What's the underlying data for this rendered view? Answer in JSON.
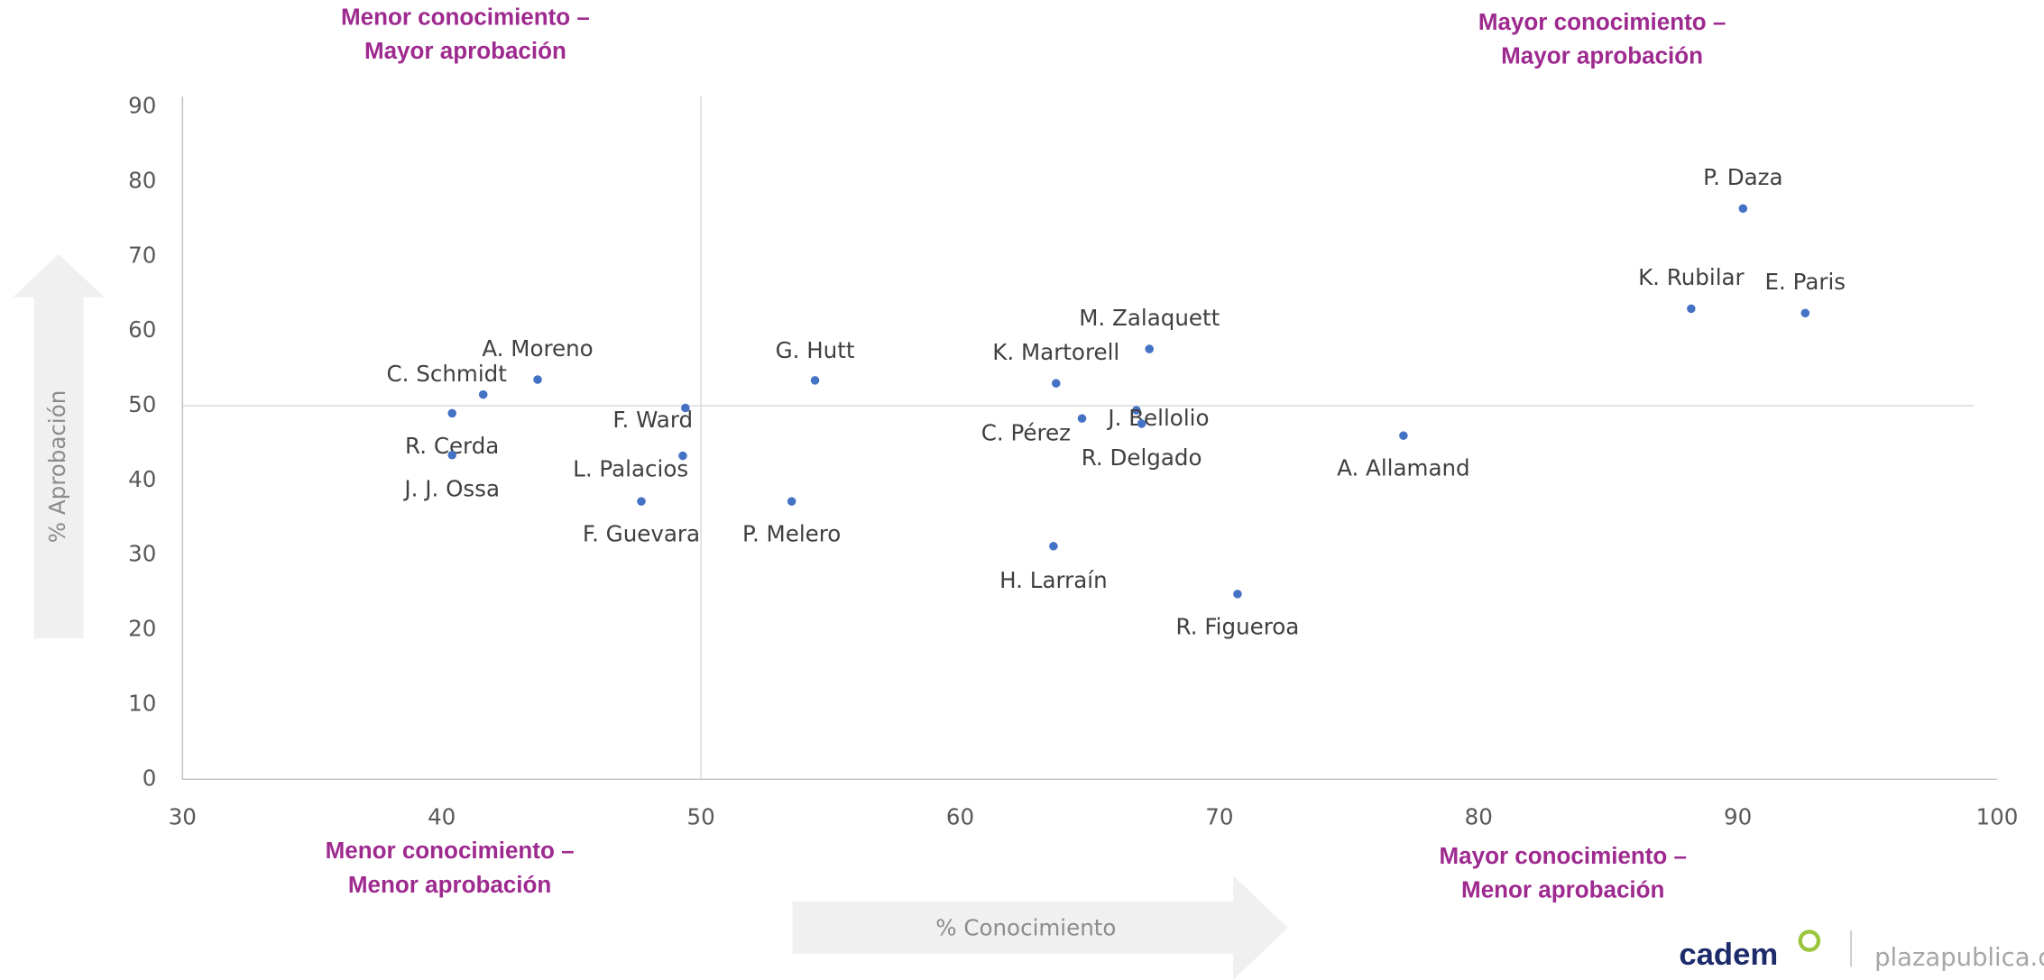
{
  "chart_data": {
    "type": "scatter",
    "x_label": "% Conocimiento",
    "y_label": "% Aprobación",
    "annotations": [
      "Menor conocimiento –\nMayor aprobación",
      "Mayor conocimiento –\nMayor aprobación",
      "Menor conocimiento –\nMenor aprobación",
      "Mayor conocimiento –\nMenor aprobación"
    ],
    "color": "#4472c4",
    "labels": [
      "P. Daza",
      "K. Rubilar",
      "E. Paris",
      "M. Zalaquett",
      "K. Martorell",
      "G. Hutt",
      "A. Moreno",
      "C. Schmidt",
      "R. Cerda",
      "J. J. Ossa",
      "F. Ward",
      "L. Palacios",
      "F. Guevara",
      "P. Melero",
      "C. Pérez",
      "J. Bellolio",
      "R. Delgado",
      "A. Allamand",
      "H. Larraín",
      "R. Figueroa"
    ],
    "x": [
      90.2,
      88.2,
      92.6,
      67.3,
      63.7,
      54.4,
      43.7,
      41.6,
      40.4,
      40.4,
      49.4,
      49.3,
      47.7,
      53.5,
      64.7,
      66.8,
      67.0,
      77.1,
      63.6,
      70.7
    ],
    "y": [
      76.4,
      63.0,
      62.4,
      57.6,
      53.0,
      53.4,
      53.5,
      51.5,
      49.0,
      43.4,
      49.7,
      43.3,
      37.2,
      37.2,
      48.3,
      49.4,
      47.6,
      46.0,
      31.2,
      24.8
    ],
    "xlim": [
      30,
      100
    ],
    "xticks": [
      30,
      40,
      50,
      60,
      70,
      80,
      90,
      100
    ],
    "ylim": [
      0,
      90
    ],
    "yticks": [
      0,
      10,
      20,
      30,
      40,
      50,
      60,
      70,
      80,
      90
    ],
    "x_divider": 50,
    "y_divider": 50
  },
  "branding": {
    "logo": "cadem",
    "site": "plazapublica.c"
  }
}
